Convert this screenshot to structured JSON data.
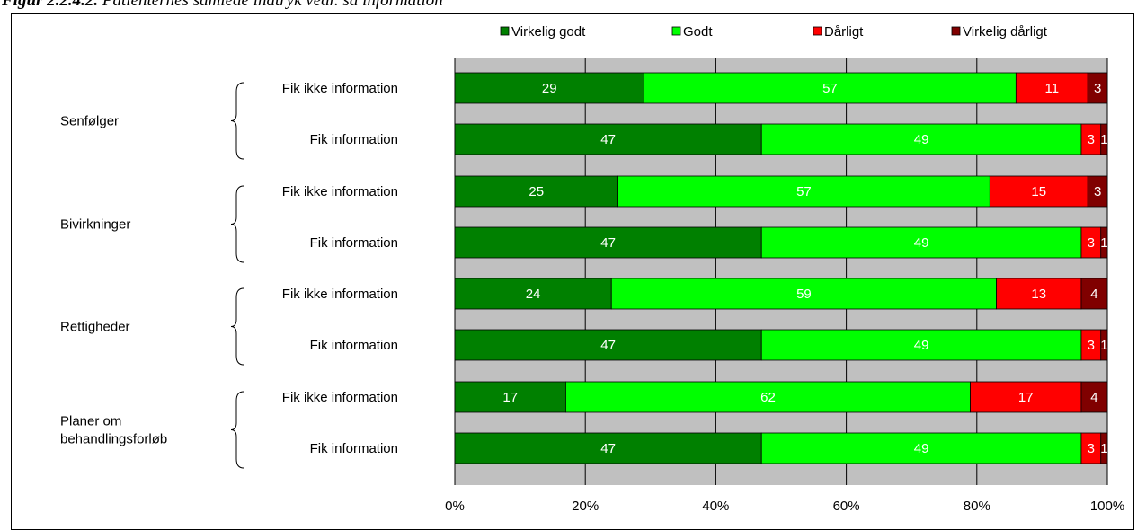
{
  "caption": {
    "label": "Figur 2.2.4.2.",
    "text": "Patienternes samlede indtryk vedr. sa information"
  },
  "colors": {
    "plot_background": "#c0c0c0",
    "gridline": "#000000",
    "label_white": "#ffffff",
    "label_black": "#000000"
  },
  "chart_data": {
    "type": "bar",
    "orientation": "horizontal",
    "stacking": "percent",
    "xlim": [
      0,
      100
    ],
    "xticks": [
      "0%",
      "20%",
      "40%",
      "60%",
      "80%",
      "100%"
    ],
    "grid": true,
    "legend_position": "top",
    "series": [
      {
        "name": "Virkelig godt",
        "color": "#008000",
        "label_color": "#ffffff"
      },
      {
        "name": "Godt",
        "color": "#00ff00",
        "label_color": "#ffffff"
      },
      {
        "name": "Dårligt",
        "color": "#ff0000",
        "label_color": "#ffffff"
      },
      {
        "name": "Virkelig dårligt",
        "color": "#800000",
        "label_color": "#ffffff"
      }
    ],
    "groups": [
      {
        "name": "Senfølger",
        "bars": [
          {
            "label": "Fik ikke information",
            "values": [
              29,
              57,
              11,
              3
            ]
          },
          {
            "label": "Fik information",
            "values": [
              47,
              49,
              3,
              1
            ]
          }
        ]
      },
      {
        "name": "Bivirkninger",
        "bars": [
          {
            "label": "Fik ikke information",
            "values": [
              25,
              57,
              15,
              3
            ]
          },
          {
            "label": "Fik information",
            "values": [
              47,
              49,
              3,
              1
            ]
          }
        ]
      },
      {
        "name": "Rettigheder",
        "bars": [
          {
            "label": "Fik ikke information",
            "values": [
              24,
              59,
              13,
              4
            ]
          },
          {
            "label": "Fik information",
            "values": [
              47,
              49,
              3,
              1
            ]
          }
        ]
      },
      {
        "name": "Planer om behandlingsforløb",
        "name_lines": [
          "Planer om",
          "behandlingsforløb"
        ],
        "bars": [
          {
            "label": "Fik ikke information",
            "values": [
              17,
              62,
              17,
              4
            ]
          },
          {
            "label": "Fik information",
            "values": [
              47,
              49,
              3,
              1
            ]
          }
        ]
      }
    ]
  }
}
